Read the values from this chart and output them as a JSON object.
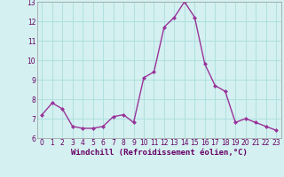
{
  "x": [
    0,
    1,
    2,
    3,
    4,
    5,
    6,
    7,
    8,
    9,
    10,
    11,
    12,
    13,
    14,
    15,
    16,
    17,
    18,
    19,
    20,
    21,
    22,
    23
  ],
  "y": [
    7.2,
    7.8,
    7.5,
    6.6,
    6.5,
    6.5,
    6.6,
    7.1,
    7.2,
    6.8,
    9.1,
    9.4,
    11.7,
    12.2,
    13.0,
    12.2,
    9.8,
    8.7,
    8.4,
    6.8,
    7.0,
    6.8,
    6.6,
    6.4
  ],
  "line_color": "#993399",
  "marker": "D",
  "marker_size": 2,
  "xlabel": "Windchill (Refroidissement éolien,°C)",
  "xlabel_fontsize": 6.5,
  "background_color": "#d4f0f0",
  "grid_color": "#aadddd",
  "ylim": [
    6,
    13
  ],
  "xlim_min": -0.5,
  "xlim_max": 23.5,
  "yticks": [
    6,
    7,
    8,
    9,
    10,
    11,
    12,
    13
  ],
  "xticks": [
    0,
    1,
    2,
    3,
    4,
    5,
    6,
    7,
    8,
    9,
    10,
    11,
    12,
    13,
    14,
    15,
    16,
    17,
    18,
    19,
    20,
    21,
    22,
    23
  ],
  "tick_fontsize": 5.5,
  "line_width": 1.0,
  "spine_color": "#999999",
  "xlabel_color": "#660066",
  "tick_color": "#660066"
}
